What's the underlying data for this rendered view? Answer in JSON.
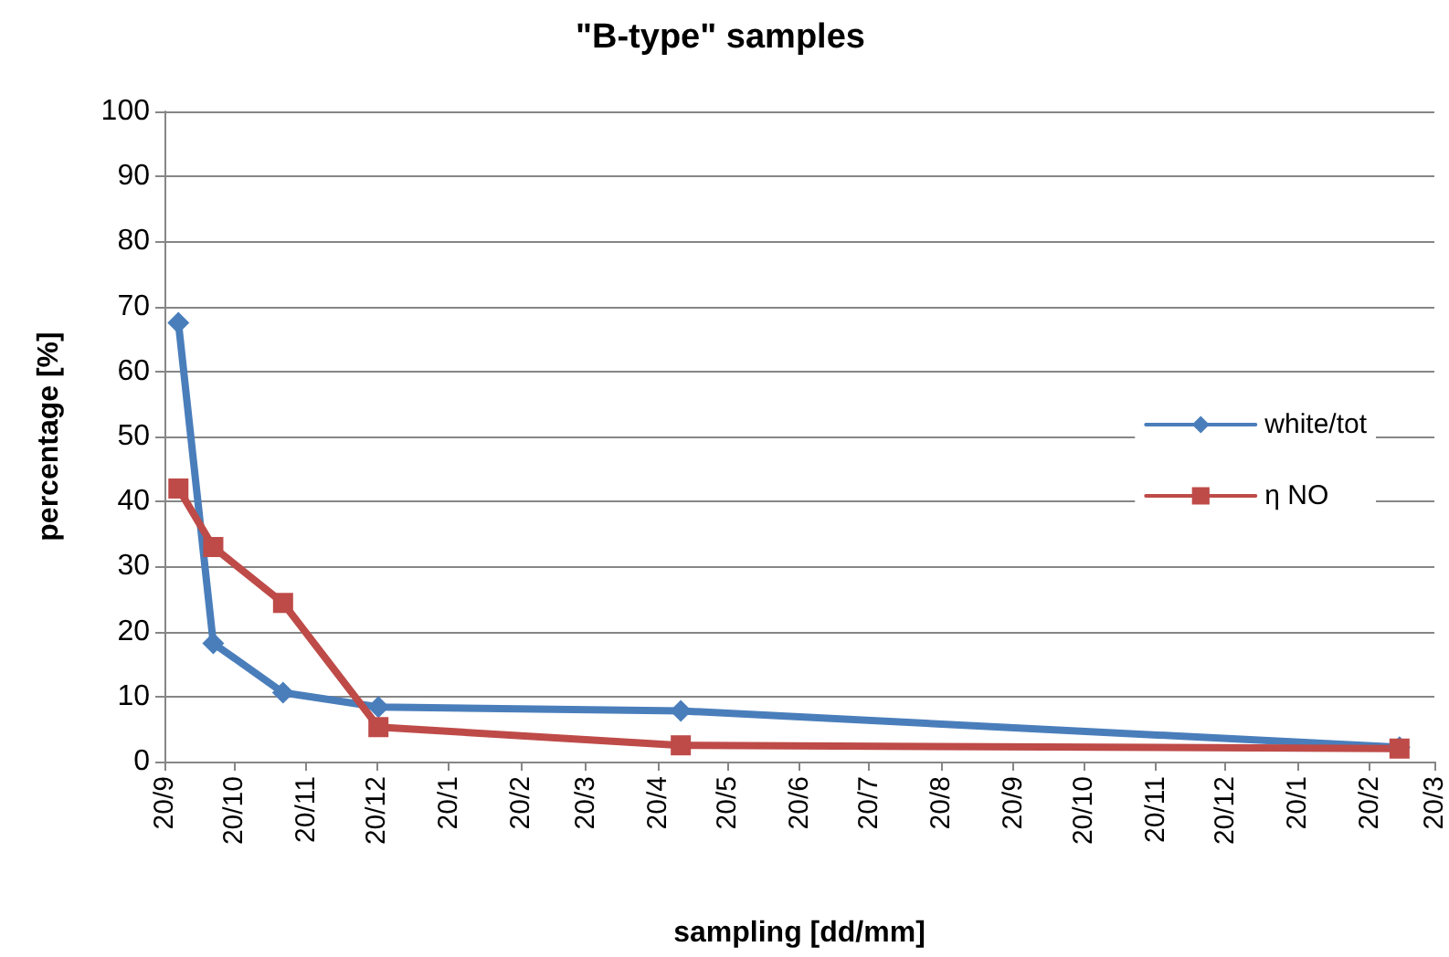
{
  "chart_data": {
    "type": "line",
    "title": "\"B-type\" samples",
    "xlabel": "sampling [dd/mm]",
    "ylabel": "percentage [%]",
    "xlim": [
      "2012-09-20",
      "2014-03-20"
    ],
    "xticks": [
      {
        "value": "2012-09-20",
        "label": "20/9"
      },
      {
        "value": "2012-10-20",
        "label": "20/10"
      },
      {
        "value": "2012-11-20",
        "label": "20/11"
      },
      {
        "value": "2012-12-20",
        "label": "20/12"
      },
      {
        "value": "2013-01-20",
        "label": "20/1"
      },
      {
        "value": "2013-02-20",
        "label": "20/2"
      },
      {
        "value": "2013-03-20",
        "label": "20/3"
      },
      {
        "value": "2013-04-20",
        "label": "20/4"
      },
      {
        "value": "2013-05-20",
        "label": "20/5"
      },
      {
        "value": "2013-06-20",
        "label": "20/6"
      },
      {
        "value": "2013-07-20",
        "label": "20/7"
      },
      {
        "value": "2013-08-20",
        "label": "20/8"
      },
      {
        "value": "2013-09-20",
        "label": "20/9"
      },
      {
        "value": "2013-10-20",
        "label": "20/10"
      },
      {
        "value": "2013-11-20",
        "label": "20/11"
      },
      {
        "value": "2013-12-20",
        "label": "20/12"
      },
      {
        "value": "2014-01-20",
        "label": "20/1"
      },
      {
        "value": "2014-02-20",
        "label": "20/2"
      },
      {
        "value": "2014-03-20",
        "label": "20/3"
      }
    ],
    "ylim": [
      0,
      100
    ],
    "yticks": [
      0,
      10,
      20,
      30,
      40,
      50,
      60,
      70,
      80,
      90,
      100
    ],
    "x": [
      "2012-09-26",
      "2012-10-11",
      "2012-11-10",
      "2012-12-21",
      "2013-04-30",
      "2014-03-05"
    ],
    "series": [
      {
        "name": "white/tot",
        "color": "#4a7ebb",
        "marker": "diamond",
        "values": [
          67.5,
          18.2,
          10.6,
          8.4,
          7.8,
          2.2
        ]
      },
      {
        "name": "η NO",
        "color": "#be4b48",
        "marker": "square",
        "values": [
          42,
          33,
          24.4,
          5.3,
          2.5,
          2.0
        ]
      }
    ],
    "grid": "y",
    "legend": "right",
    "line_style": "solid"
  }
}
